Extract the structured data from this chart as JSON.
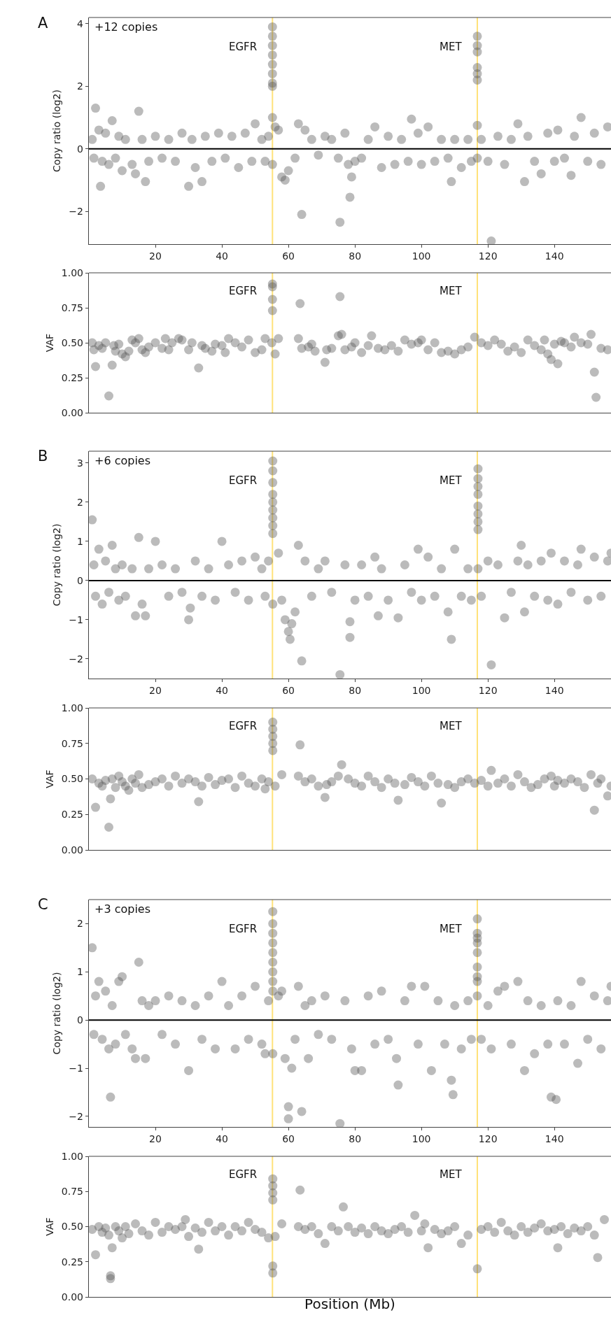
{
  "chart_data": [
    {
      "type": "scatter",
      "ylabel": "Copy ratio (log2)",
      "annotations": [
        "A",
        "+12 copies"
      ],
      "color": "#555555",
      "marker": "circle",
      "grid": false,
      "xlim": [
        0,
        157
      ],
      "xticks": [
        20,
        40,
        60,
        80,
        100,
        120,
        140
      ],
      "ylim": [
        -3.05,
        4.2
      ],
      "yticks": [
        {
          "value": -2,
          "label": "−2"
        },
        0,
        2,
        4
      ],
      "ref_lines": [
        {
          "axis": "x",
          "value": 55.2,
          "label": "EGFR",
          "color": "#ffe27a"
        },
        {
          "axis": "x",
          "value": 116.8,
          "label": "MET",
          "color": "#ffe27a"
        },
        {
          "axis": "y",
          "value": 0,
          "color": "#000000"
        }
      ],
      "x": [
        1,
        1.5,
        2,
        3,
        3.5,
        4,
        5,
        6,
        7,
        8,
        9,
        10,
        11,
        13,
        14,
        15,
        16,
        17,
        18,
        20,
        22,
        24,
        26,
        28,
        30,
        31,
        32,
        34,
        35,
        37,
        39,
        41,
        43,
        45,
        47,
        49,
        50,
        52,
        53,
        54,
        55.2,
        55.2,
        55.2,
        55.2,
        55.2,
        55.2,
        55.2,
        55.2,
        55.2,
        55.2,
        56,
        57,
        58,
        59,
        60,
        62,
        63,
        64,
        65,
        67,
        69,
        71,
        73,
        75,
        75.5,
        77,
        78,
        78.5,
        79,
        80,
        82,
        84,
        86,
        88,
        90,
        92,
        94,
        96,
        97,
        99,
        100,
        102,
        104,
        106,
        108,
        109,
        110,
        112,
        114,
        115,
        116.8,
        116.8,
        116.8,
        116.8,
        116.8,
        116.8,
        116.8,
        116.8,
        118,
        120,
        121,
        123,
        125,
        127,
        129,
        131,
        132,
        134,
        136,
        138,
        140,
        141,
        143,
        145,
        146,
        148,
        150,
        152,
        154,
        156
      ],
      "values": [
        0.3,
        -0.3,
        1.3,
        0.6,
        -1.2,
        -0.4,
        0.5,
        -0.5,
        0.9,
        -0.3,
        0.4,
        -0.7,
        0.3,
        -0.5,
        -0.8,
        1.2,
        0.3,
        -1.05,
        -0.4,
        0.4,
        -0.3,
        0.3,
        -0.4,
        0.5,
        -1.2,
        0.3,
        -0.6,
        -1.05,
        0.4,
        -0.4,
        0.5,
        -0.3,
        0.4,
        -0.6,
        0.5,
        -0.4,
        0.8,
        0.3,
        -0.4,
        0.4,
        3.9,
        3.6,
        3.3,
        3.0,
        2.7,
        2.4,
        2.1,
        2.0,
        1.0,
        -0.5,
        0.7,
        0.6,
        -0.9,
        -1.0,
        -0.7,
        -0.3,
        0.8,
        -2.1,
        0.6,
        0.3,
        -0.2,
        0.4,
        0.3,
        -0.3,
        -2.35,
        0.5,
        -0.5,
        -1.55,
        -0.9,
        -0.4,
        -0.3,
        0.3,
        0.7,
        -0.6,
        0.4,
        -0.5,
        0.3,
        -0.4,
        0.95,
        0.5,
        -0.5,
        0.7,
        -0.4,
        0.3,
        -0.3,
        -1.05,
        0.3,
        -0.6,
        0.3,
        -0.4,
        3.6,
        3.3,
        3.1,
        2.6,
        2.4,
        2.2,
        0.75,
        -0.3,
        0.3,
        -0.4,
        -2.95,
        0.4,
        -0.5,
        0.3,
        0.8,
        -1.05,
        0.4,
        -0.4,
        -0.8,
        0.5,
        -0.4,
        0.6,
        -0.3,
        -0.85,
        0.4,
        1.0,
        -0.4,
        0.5,
        -0.5,
        0.7
      ]
    },
    {
      "type": "scatter",
      "ylabel": "VAF",
      "color": "#555555",
      "marker": "circle",
      "grid": false,
      "tick_labels": "y",
      "xlim": [
        0,
        157
      ],
      "ylim": [
        0,
        1
      ],
      "yticks": [
        {
          "value": 0,
          "label": "0.00"
        },
        {
          "value": 0.25,
          "label": "0.25"
        },
        {
          "value": 0.5,
          "label": "0.50"
        },
        {
          "value": 0.75,
          "label": "0.75"
        },
        {
          "value": 1,
          "label": "1.00"
        }
      ],
      "ref_lines": [
        {
          "axis": "x",
          "value": 55.2,
          "label": "EGFR",
          "color": "#ffe27a"
        },
        {
          "axis": "x",
          "value": 116.8,
          "label": "MET",
          "color": "#ffe27a"
        }
      ],
      "x": [
        1,
        1.5,
        2,
        3,
        4,
        5,
        6,
        7,
        7.5,
        8,
        9,
        10,
        11,
        12,
        13,
        14,
        15,
        16,
        17,
        18,
        20,
        22,
        23,
        24,
        25,
        27,
        28,
        30,
        31,
        33,
        34,
        35,
        37,
        38,
        40,
        41,
        42,
        44,
        46,
        48,
        50,
        52,
        53,
        55.2,
        55.2,
        55.2,
        55.2,
        55,
        56,
        57,
        63,
        63.5,
        64,
        66,
        67,
        68,
        71,
        71.5,
        73,
        75,
        75.5,
        76,
        77,
        79,
        80,
        82,
        84,
        85,
        87,
        89,
        91,
        93,
        95,
        97,
        99,
        100,
        102,
        104,
        106,
        108,
        110,
        112,
        114,
        116,
        118,
        120,
        122,
        124,
        126,
        128,
        130,
        132,
        134,
        136,
        137,
        138,
        139,
        140,
        141,
        142,
        143,
        145,
        146,
        148,
        150,
        151,
        152,
        152.5,
        154,
        156
      ],
      "values": [
        0.5,
        0.45,
        0.33,
        0.48,
        0.46,
        0.5,
        0.12,
        0.34,
        0.48,
        0.44,
        0.49,
        0.42,
        0.4,
        0.44,
        0.52,
        0.5,
        0.53,
        0.45,
        0.43,
        0.47,
        0.5,
        0.46,
        0.53,
        0.45,
        0.5,
        0.53,
        0.52,
        0.45,
        0.5,
        0.32,
        0.48,
        0.46,
        0.44,
        0.49,
        0.48,
        0.43,
        0.53,
        0.5,
        0.47,
        0.52,
        0.43,
        0.45,
        0.53,
        0.92,
        0.9,
        0.81,
        0.73,
        0.5,
        0.42,
        0.53,
        0.53,
        0.78,
        0.46,
        0.47,
        0.49,
        0.44,
        0.36,
        0.45,
        0.46,
        0.55,
        0.83,
        0.56,
        0.45,
        0.47,
        0.5,
        0.43,
        0.48,
        0.55,
        0.46,
        0.45,
        0.48,
        0.44,
        0.52,
        0.49,
        0.5,
        0.52,
        0.45,
        0.5,
        0.43,
        0.44,
        0.42,
        0.45,
        0.47,
        0.54,
        0.5,
        0.48,
        0.52,
        0.49,
        0.44,
        0.47,
        0.43,
        0.52,
        0.48,
        0.45,
        0.52,
        0.42,
        0.38,
        0.49,
        0.35,
        0.51,
        0.5,
        0.47,
        0.54,
        0.5,
        0.49,
        0.56,
        0.29,
        0.11,
        0.46,
        0.45
      ]
    },
    {
      "type": "scatter",
      "ylabel": "Copy ratio (log2)",
      "annotations": [
        "B",
        "+6 copies"
      ],
      "color": "#555555",
      "marker": "circle",
      "grid": false,
      "xlim": [
        0,
        157
      ],
      "xticks": [
        20,
        40,
        60,
        80,
        100,
        120,
        140
      ],
      "ylim": [
        -2.5,
        3.3
      ],
      "yticks": [
        {
          "value": -2,
          "label": "−2"
        },
        {
          "value": -1,
          "label": "−1"
        },
        0,
        1,
        2,
        3
      ],
      "ref_lines": [
        {
          "axis": "x",
          "value": 55.2,
          "label": "EGFR",
          "color": "#ffe27a"
        },
        {
          "axis": "x",
          "value": 116.8,
          "label": "MET",
          "color": "#ffe27a"
        },
        {
          "axis": "y",
          "value": 0,
          "color": "#000000"
        }
      ],
      "x": [
        1,
        1.5,
        2,
        3,
        4,
        5,
        6,
        7,
        8,
        9,
        10,
        11,
        13,
        14,
        15,
        16,
        17,
        18,
        20,
        22,
        24,
        26,
        28,
        30,
        30.5,
        32,
        34,
        36,
        38,
        40,
        42,
        44,
        46,
        48,
        50,
        52,
        53,
        54,
        55.3,
        55.3,
        55.3,
        55.3,
        55.3,
        55.3,
        55.3,
        55.3,
        55.3,
        55.3,
        57,
        58,
        59,
        60,
        60.5,
        61,
        62,
        63,
        64,
        65,
        67,
        69,
        71,
        73,
        75.5,
        77,
        78.5,
        78.5,
        80,
        82,
        84,
        86,
        87,
        88,
        90,
        93,
        95,
        97,
        99,
        100,
        102,
        104,
        106,
        108,
        109,
        110,
        112,
        114,
        115,
        117,
        117,
        117,
        117,
        117,
        117,
        117,
        117,
        117,
        118,
        120,
        121,
        123,
        125,
        127,
        129,
        130,
        131,
        132,
        134,
        136,
        138,
        139,
        141,
        143,
        145,
        147,
        148,
        150,
        152,
        154,
        156,
        157
      ],
      "values": [
        1.55,
        0.4,
        -0.4,
        0.8,
        -0.6,
        0.5,
        -0.3,
        0.9,
        0.3,
        -0.5,
        0.4,
        -0.4,
        0.3,
        -0.9,
        1.1,
        -0.6,
        -0.9,
        0.3,
        1.0,
        0.4,
        -0.4,
        0.3,
        -0.3,
        -1.0,
        -0.7,
        0.5,
        -0.4,
        0.3,
        -0.5,
        1.0,
        0.4,
        -0.3,
        0.5,
        -0.5,
        0.6,
        0.3,
        -0.4,
        0.5,
        3.05,
        2.8,
        2.5,
        2.2,
        2.0,
        1.8,
        1.6,
        1.4,
        1.2,
        -0.6,
        0.7,
        -0.5,
        -1.0,
        -1.3,
        -1.5,
        -1.1,
        -0.8,
        0.9,
        -2.05,
        0.5,
        -0.4,
        0.3,
        0.5,
        -0.3,
        -2.4,
        0.4,
        -1.05,
        -1.45,
        -0.5,
        0.4,
        -0.4,
        0.6,
        -0.9,
        0.3,
        -0.5,
        -0.95,
        0.4,
        -0.3,
        0.8,
        -0.5,
        0.6,
        -0.4,
        0.3,
        -0.8,
        -1.5,
        0.8,
        -0.4,
        0.3,
        -0.5,
        2.85,
        2.6,
        2.4,
        2.2,
        1.9,
        1.7,
        1.5,
        1.3,
        0.3,
        -0.4,
        0.5,
        -2.15,
        0.4,
        -0.95,
        -0.3,
        0.5,
        0.9,
        -0.8,
        0.4,
        -0.4,
        0.5,
        -0.5,
        0.7,
        -0.6,
        0.5,
        -0.3,
        0.4,
        0.8,
        -0.5,
        0.6,
        -0.4,
        0.5,
        0.7
      ]
    },
    {
      "type": "scatter",
      "ylabel": "VAF",
      "color": "#555555",
      "marker": "circle",
      "grid": false,
      "tick_labels": "y",
      "xlim": [
        0,
        157
      ],
      "ylim": [
        0,
        1
      ],
      "yticks": [
        {
          "value": 0,
          "label": "0.00"
        },
        {
          "value": 0.25,
          "label": "0.25"
        },
        {
          "value": 0.5,
          "label": "0.50"
        },
        {
          "value": 0.75,
          "label": "0.75"
        },
        {
          "value": 1,
          "label": "1.00"
        }
      ],
      "ref_lines": [
        {
          "axis": "x",
          "value": 55.2,
          "label": "EGFR",
          "color": "#ffe27a"
        },
        {
          "axis": "x",
          "value": 116.8,
          "label": "MET",
          "color": "#ffe27a"
        }
      ],
      "x": [
        1,
        2,
        3,
        4,
        5,
        6,
        6.5,
        7,
        8,
        9,
        10,
        11,
        12,
        13,
        14,
        15,
        16,
        18,
        20,
        22,
        24,
        26,
        28,
        30,
        32,
        33,
        34,
        36,
        38,
        40,
        42,
        44,
        46,
        48,
        50,
        52,
        53,
        54,
        55.3,
        55.3,
        55.3,
        55.3,
        55.3,
        56,
        58,
        63,
        63.5,
        65,
        67,
        69,
        71,
        71.5,
        73,
        75,
        76,
        78,
        80,
        82,
        84,
        86,
        88,
        90,
        92,
        93,
        95,
        97,
        99,
        101,
        103,
        105,
        106,
        108,
        110,
        112,
        114,
        116,
        118,
        120,
        121,
        123,
        125,
        127,
        129,
        131,
        133,
        135,
        137,
        139,
        140,
        141,
        143,
        145,
        147,
        149,
        151,
        152,
        153,
        154,
        156,
        157
      ],
      "values": [
        0.5,
        0.3,
        0.47,
        0.45,
        0.49,
        0.16,
        0.36,
        0.5,
        0.44,
        0.52,
        0.48,
        0.45,
        0.42,
        0.5,
        0.47,
        0.53,
        0.44,
        0.46,
        0.48,
        0.5,
        0.45,
        0.52,
        0.47,
        0.5,
        0.48,
        0.34,
        0.45,
        0.51,
        0.46,
        0.49,
        0.5,
        0.44,
        0.52,
        0.47,
        0.45,
        0.5,
        0.43,
        0.48,
        0.9,
        0.85,
        0.8,
        0.75,
        0.7,
        0.45,
        0.53,
        0.52,
        0.74,
        0.48,
        0.5,
        0.45,
        0.37,
        0.46,
        0.48,
        0.52,
        0.6,
        0.5,
        0.47,
        0.45,
        0.52,
        0.48,
        0.44,
        0.5,
        0.47,
        0.35,
        0.46,
        0.51,
        0.48,
        0.45,
        0.52,
        0.47,
        0.33,
        0.46,
        0.44,
        0.48,
        0.5,
        0.47,
        0.49,
        0.45,
        0.56,
        0.47,
        0.5,
        0.45,
        0.53,
        0.48,
        0.44,
        0.46,
        0.5,
        0.52,
        0.45,
        0.49,
        0.47,
        0.5,
        0.48,
        0.44,
        0.53,
        0.28,
        0.47,
        0.5,
        0.38,
        0.45
      ]
    },
    {
      "type": "scatter",
      "ylabel": "Copy ratio (log2)",
      "annotations": [
        "C",
        "+3 copies"
      ],
      "color": "#555555",
      "marker": "circle",
      "grid": false,
      "xlim": [
        0,
        157
      ],
      "xticks": [
        20,
        40,
        60,
        80,
        100,
        120,
        140
      ],
      "ylim": [
        -2.22,
        2.5
      ],
      "yticks": [
        {
          "value": -2,
          "label": "−2"
        },
        {
          "value": -1,
          "label": "−1"
        },
        0,
        1,
        2
      ],
      "ref_lines": [
        {
          "axis": "x",
          "value": 55.2,
          "label": "EGFR",
          "color": "#ffe27a"
        },
        {
          "axis": "x",
          "value": 116.8,
          "label": "MET",
          "color": "#ffe27a"
        },
        {
          "axis": "y",
          "value": 0,
          "color": "#000000"
        }
      ],
      "x": [
        1,
        1.5,
        2,
        3,
        4,
        5,
        6,
        6.5,
        7,
        8,
        9,
        10,
        11,
        13,
        14,
        15,
        16,
        17,
        18,
        20,
        22,
        24,
        26,
        28,
        30,
        32,
        34,
        36,
        38,
        40,
        42,
        44,
        46,
        48,
        50,
        52,
        53,
        54,
        55.3,
        55.3,
        55.3,
        55.3,
        55.3,
        55.3,
        55.3,
        55.3,
        55.3,
        55.3,
        57,
        58,
        59,
        60,
        60,
        61,
        62,
        63,
        64,
        65,
        66,
        67,
        69,
        71,
        73,
        75.5,
        77,
        79,
        80,
        82,
        84,
        86,
        88,
        90,
        92.5,
        93,
        95,
        97,
        99,
        101,
        103,
        105,
        107,
        109,
        109.5,
        110,
        112,
        114,
        115,
        116.8,
        116.8,
        116.8,
        116.8,
        116.8,
        116.8,
        116.8,
        116.8,
        116.8,
        118,
        120,
        121,
        123,
        125,
        127,
        129,
        131,
        132,
        134,
        136,
        138,
        139,
        140.5,
        141,
        143,
        145,
        147,
        148,
        150,
        152,
        154,
        156,
        157
      ],
      "values": [
        1.5,
        -0.3,
        0.5,
        0.8,
        -0.4,
        0.6,
        -0.6,
        -1.6,
        0.3,
        -0.5,
        0.8,
        0.9,
        -0.3,
        -0.6,
        -0.8,
        1.2,
        0.4,
        -0.8,
        0.3,
        0.4,
        -0.3,
        0.5,
        -0.5,
        0.4,
        -1.05,
        0.3,
        -0.4,
        0.5,
        -0.6,
        0.8,
        0.3,
        -0.6,
        0.5,
        -0.4,
        0.7,
        -0.5,
        -0.7,
        0.4,
        2.25,
        2.0,
        1.8,
        1.6,
        1.4,
        1.2,
        1.0,
        0.8,
        0.6,
        -0.7,
        0.5,
        0.6,
        -0.8,
        -1.8,
        -2.05,
        -1.0,
        -0.4,
        0.7,
        -1.9,
        0.3,
        -0.8,
        0.4,
        -0.3,
        0.5,
        -0.4,
        -2.15,
        0.4,
        -0.6,
        -1.05,
        -1.05,
        0.5,
        -0.5,
        0.6,
        -0.4,
        -0.8,
        -1.35,
        0.4,
        0.7,
        -0.5,
        0.7,
        -1.05,
        0.4,
        -0.5,
        -1.25,
        -1.55,
        0.3,
        -0.6,
        0.4,
        -0.4,
        2.1,
        1.8,
        1.7,
        1.6,
        1.4,
        1.1,
        0.9,
        0.8,
        0.5,
        -0.4,
        0.3,
        -0.6,
        0.6,
        0.7,
        -0.5,
        0.8,
        -1.05,
        0.4,
        -0.7,
        0.3,
        -0.5,
        -1.6,
        -1.65,
        0.4,
        -0.5,
        0.3,
        -0.9,
        0.8,
        -0.4,
        0.5,
        -0.6,
        0.4,
        0.7
      ]
    },
    {
      "type": "scatter",
      "ylabel": "VAF",
      "xlabel": "Position (Mb)",
      "color": "#555555",
      "marker": "circle",
      "grid": false,
      "tick_labels": "y",
      "xlim": [
        0,
        157
      ],
      "ylim": [
        0,
        1
      ],
      "yticks": [
        {
          "value": 0,
          "label": "0.00"
        },
        {
          "value": 0.25,
          "label": "0.25"
        },
        {
          "value": 0.5,
          "label": "0.50"
        },
        {
          "value": 0.75,
          "label": "0.75"
        },
        {
          "value": 1,
          "label": "1.00"
        }
      ],
      "ref_lines": [
        {
          "axis": "x",
          "value": 55.2,
          "label": "EGFR",
          "color": "#ffe27a"
        },
        {
          "axis": "x",
          "value": 116.8,
          "label": "MET",
          "color": "#ffe27a"
        }
      ],
      "x": [
        1,
        2,
        3,
        4,
        5,
        6,
        6.5,
        6.5,
        7,
        8,
        9,
        10,
        11,
        12,
        14,
        16,
        18,
        20,
        22,
        24,
        26,
        28,
        29,
        30,
        32,
        33,
        34,
        36,
        38,
        40,
        42,
        44,
        46,
        48,
        50,
        52,
        54,
        55.3,
        55.3,
        55.3,
        55.3,
        55.3,
        55.3,
        56,
        58,
        63,
        63.5,
        65,
        67,
        69,
        71,
        73,
        75,
        76.5,
        78,
        80,
        82,
        84,
        86,
        88,
        90,
        92,
        94,
        96,
        98,
        100,
        101,
        102,
        104,
        106,
        108,
        110,
        112,
        114,
        116.8,
        118,
        120,
        122,
        124,
        126,
        128,
        130,
        132,
        134,
        136,
        138,
        140,
        141,
        142,
        144,
        146,
        148,
        150,
        152,
        153,
        155
      ],
      "values": [
        0.48,
        0.3,
        0.5,
        0.46,
        0.49,
        0.44,
        0.15,
        0.13,
        0.35,
        0.5,
        0.47,
        0.42,
        0.5,
        0.45,
        0.52,
        0.47,
        0.44,
        0.53,
        0.46,
        0.5,
        0.48,
        0.5,
        0.55,
        0.43,
        0.49,
        0.34,
        0.46,
        0.53,
        0.47,
        0.5,
        0.44,
        0.5,
        0.47,
        0.53,
        0.48,
        0.46,
        0.42,
        0.84,
        0.79,
        0.74,
        0.69,
        0.22,
        0.17,
        0.43,
        0.52,
        0.5,
        0.76,
        0.48,
        0.5,
        0.45,
        0.38,
        0.5,
        0.47,
        0.64,
        0.5,
        0.46,
        0.49,
        0.45,
        0.5,
        0.47,
        0.45,
        0.48,
        0.5,
        0.46,
        0.58,
        0.47,
        0.52,
        0.35,
        0.48,
        0.45,
        0.47,
        0.5,
        0.38,
        0.44,
        0.2,
        0.48,
        0.5,
        0.46,
        0.53,
        0.47,
        0.44,
        0.5,
        0.46,
        0.49,
        0.52,
        0.47,
        0.48,
        0.35,
        0.5,
        0.45,
        0.49,
        0.47,
        0.5,
        0.44,
        0.28,
        0.55
      ]
    }
  ]
}
